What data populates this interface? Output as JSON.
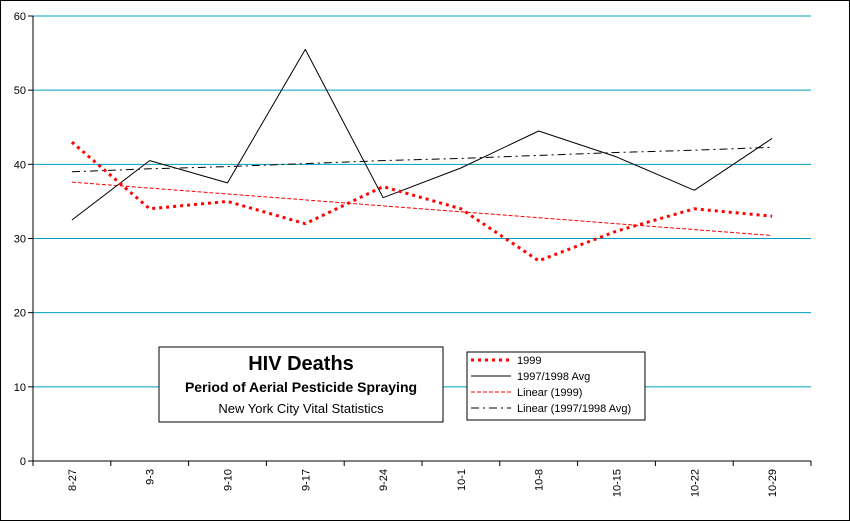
{
  "chart_data": {
    "type": "line",
    "categories": [
      "8-27",
      "9-3",
      "9-10",
      "9-17",
      "9-24",
      "10-1",
      "10-8",
      "10-15",
      "10-22",
      "10-29"
    ],
    "series": [
      {
        "name": "1999",
        "values": [
          43,
          34,
          35,
          32,
          37,
          34,
          27,
          31,
          34,
          33
        ],
        "color": "#ff0000",
        "style": "dotted-thick"
      },
      {
        "name": "1997/1998 Avg",
        "values": [
          32.5,
          40.5,
          37.5,
          55.5,
          35.5,
          39.5,
          44.5,
          41,
          36.5,
          43.5
        ],
        "color": "#000000",
        "style": "solid"
      },
      {
        "name": "Linear (1999)",
        "values": [
          37.6,
          36.8,
          36.0,
          35.2,
          34.4,
          33.6,
          32.8,
          32.0,
          31.2,
          30.4
        ],
        "color": "#ff0000",
        "style": "dashed-thin"
      },
      {
        "name": "Linear (1997/1998 Avg)",
        "values": [
          39.0,
          39.4,
          39.7,
          40.1,
          40.5,
          40.8,
          41.2,
          41.6,
          41.9,
          42.3
        ],
        "color": "#000000",
        "style": "dash-dot"
      }
    ],
    "yticks": [
      0,
      10,
      20,
      30,
      40,
      50,
      60
    ],
    "ylim": [
      0,
      60
    ],
    "grid": true,
    "grid_color": "#00a0c0",
    "title_box": {
      "title": "HIV Deaths",
      "subtitle": "Period of Aerial Pesticide Spraying",
      "source": "New York City Vital Statistics"
    },
    "legend_placement": "bottom-center"
  }
}
